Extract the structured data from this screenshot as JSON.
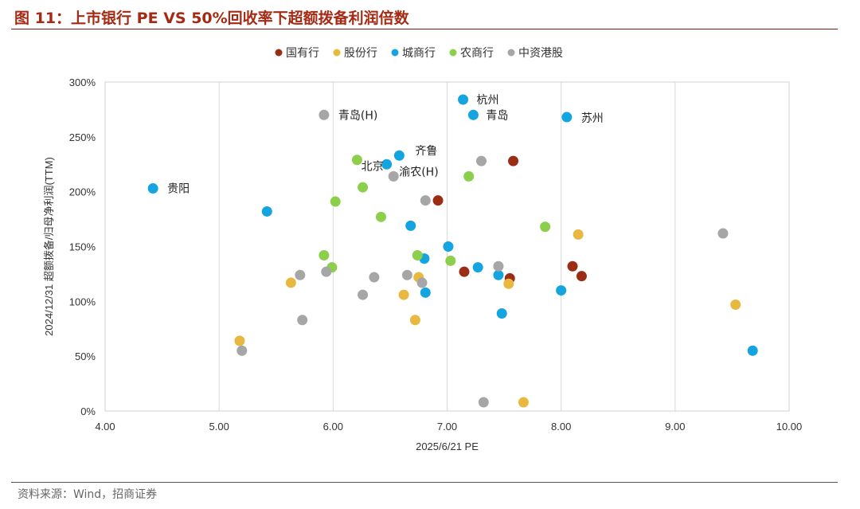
{
  "header": {
    "title": "图  11：上市银行 PE VS 50%回收率下超额拨备利润倍数"
  },
  "source": "资料来源：Wind，招商证券",
  "chart_data": {
    "type": "scatter",
    "title": "上市银行 PE VS 50%回收率下超额拨备利润倍数",
    "xlabel": "2025/6/21 PE",
    "ylabel": "2024/12/31 超额拨备/归母净利润(TTM)",
    "xlim": [
      4.0,
      10.0
    ],
    "ylim": [
      0,
      3.0
    ],
    "x_ticks": [
      "4.00",
      "5.00",
      "6.00",
      "7.00",
      "8.00",
      "9.00",
      "10.00"
    ],
    "y_ticks": [
      "0%",
      "50%",
      "100%",
      "150%",
      "200%",
      "250%",
      "300%"
    ],
    "grid": "vertical",
    "legend_position": "top-center",
    "series": [
      {
        "name": "国有行",
        "color": "#9b2d14",
        "points": [
          {
            "x": 6.92,
            "y": 1.92
          },
          {
            "x": 7.58,
            "y": 2.28
          },
          {
            "x": 7.15,
            "y": 1.27
          },
          {
            "x": 7.55,
            "y": 1.21
          },
          {
            "x": 8.1,
            "y": 1.32
          },
          {
            "x": 8.18,
            "y": 1.23
          }
        ]
      },
      {
        "name": "股份行",
        "color": "#e8b840",
        "points": [
          {
            "x": 5.18,
            "y": 0.64
          },
          {
            "x": 5.63,
            "y": 1.17
          },
          {
            "x": 6.62,
            "y": 1.06
          },
          {
            "x": 6.72,
            "y": 0.83
          },
          {
            "x": 6.75,
            "y": 1.22
          },
          {
            "x": 7.54,
            "y": 1.16
          },
          {
            "x": 7.67,
            "y": 0.08
          },
          {
            "x": 8.15,
            "y": 1.61
          },
          {
            "x": 9.53,
            "y": 0.97
          }
        ]
      },
      {
        "name": "城商行",
        "color": "#14a5e0",
        "points": [
          {
            "x": 4.42,
            "y": 2.03,
            "label": "贵阳"
          },
          {
            "x": 5.42,
            "y": 1.82
          },
          {
            "x": 6.47,
            "y": 2.25,
            "label": "北京"
          },
          {
            "x": 6.58,
            "y": 2.33,
            "label": "齐鲁"
          },
          {
            "x": 6.68,
            "y": 1.69
          },
          {
            "x": 6.8,
            "y": 1.39
          },
          {
            "x": 6.81,
            "y": 1.08
          },
          {
            "x": 7.01,
            "y": 1.5
          },
          {
            "x": 7.14,
            "y": 2.84,
            "label": "杭州"
          },
          {
            "x": 7.23,
            "y": 2.7,
            "label": "青岛"
          },
          {
            "x": 7.27,
            "y": 1.31
          },
          {
            "x": 7.45,
            "y": 1.24
          },
          {
            "x": 7.48,
            "y": 0.89
          },
          {
            "x": 8.0,
            "y": 1.1
          },
          {
            "x": 8.05,
            "y": 2.68,
            "label": "苏州"
          },
          {
            "x": 9.68,
            "y": 0.55
          }
        ]
      },
      {
        "name": "农商行",
        "color": "#8ccf4a",
        "points": [
          {
            "x": 5.92,
            "y": 1.42
          },
          {
            "x": 5.99,
            "y": 1.31
          },
          {
            "x": 6.02,
            "y": 1.91
          },
          {
            "x": 6.21,
            "y": 2.29
          },
          {
            "x": 6.26,
            "y": 2.04
          },
          {
            "x": 6.42,
            "y": 1.77
          },
          {
            "x": 6.74,
            "y": 1.42
          },
          {
            "x": 7.03,
            "y": 1.37
          },
          {
            "x": 7.19,
            "y": 2.14
          },
          {
            "x": 7.86,
            "y": 1.68
          }
        ]
      },
      {
        "name": "中资港股",
        "color": "#a6a6a6",
        "points": [
          {
            "x": 5.2,
            "y": 0.55
          },
          {
            "x": 5.71,
            "y": 1.24
          },
          {
            "x": 5.73,
            "y": 0.83
          },
          {
            "x": 5.92,
            "y": 2.7,
            "label": "青岛(H)"
          },
          {
            "x": 5.94,
            "y": 1.27
          },
          {
            "x": 6.26,
            "y": 1.06
          },
          {
            "x": 6.36,
            "y": 1.22
          },
          {
            "x": 6.53,
            "y": 2.14,
            "label": "渝农(H)"
          },
          {
            "x": 6.65,
            "y": 1.24
          },
          {
            "x": 6.78,
            "y": 1.17
          },
          {
            "x": 6.81,
            "y": 1.92
          },
          {
            "x": 7.3,
            "y": 2.28
          },
          {
            "x": 7.32,
            "y": 0.08
          },
          {
            "x": 7.45,
            "y": 1.32
          },
          {
            "x": 9.42,
            "y": 1.62
          }
        ]
      }
    ]
  }
}
